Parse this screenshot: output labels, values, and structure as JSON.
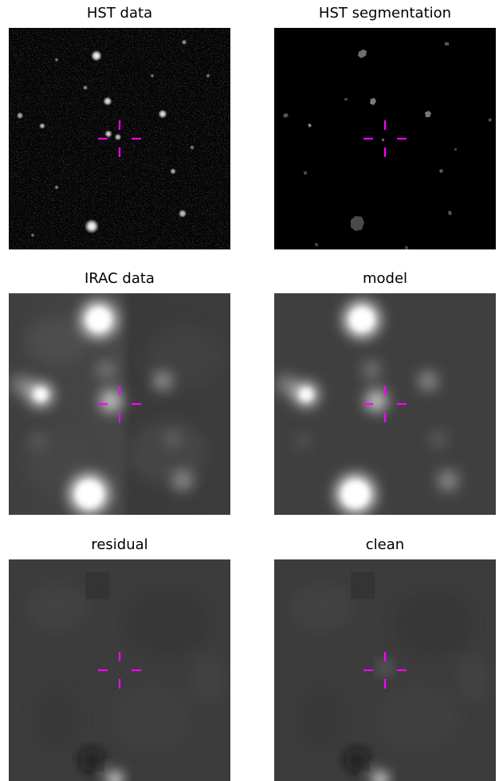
{
  "colors": {
    "crosshair": "#ff00ff",
    "background_page": "#ffffff"
  },
  "panels": [
    {
      "id": "hst-data",
      "title": "HST data",
      "kind": "hst_data"
    },
    {
      "id": "hst-segmentation",
      "title": "HST segmentation",
      "kind": "segmentation"
    },
    {
      "id": "irac-data",
      "title": "IRAC data",
      "kind": "irac"
    },
    {
      "id": "model",
      "title": "model",
      "kind": "model"
    },
    {
      "id": "residual",
      "title": "residual",
      "kind": "residual"
    },
    {
      "id": "clean",
      "title": "clean",
      "kind": "clean"
    }
  ]
}
